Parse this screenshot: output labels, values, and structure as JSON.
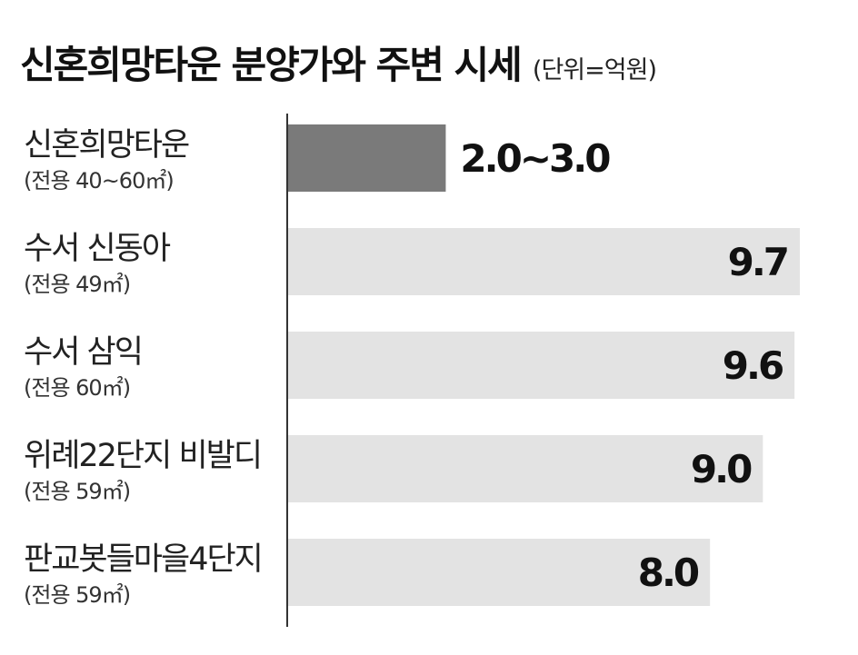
{
  "title": "신혼희망타운 분양가와 주변 시세",
  "unit": "(단위=억원)",
  "chart_data": {
    "type": "bar",
    "orientation": "horizontal",
    "title": "신혼희망타운 분양가와 주변 시세",
    "unit": "(단위=억원)",
    "categories": [
      {
        "name": "신혼희망타운",
        "sub": "(전용 40~60㎡)"
      },
      {
        "name": "수서 신동아",
        "sub": "(전용 49㎡)"
      },
      {
        "name": "수서 삼익",
        "sub": "(전용 60㎡)"
      },
      {
        "name": "위례22단지 비발디",
        "sub": "(전용 59㎡)"
      },
      {
        "name": "판교봇들마을4단지",
        "sub": "(전용 59㎡)"
      }
    ],
    "values": [
      3.0,
      9.7,
      9.6,
      9.0,
      8.0
    ],
    "value_labels": [
      "2.0~3.0",
      "9.7",
      "9.6",
      "9.0",
      "8.0"
    ],
    "highlight_index": 0,
    "colors": {
      "highlight": "#7a7a7a",
      "bar": "#e3e3e3",
      "axis": "#333333"
    },
    "xlim": [
      0,
      9.7
    ],
    "grid": false,
    "legend": "none"
  }
}
